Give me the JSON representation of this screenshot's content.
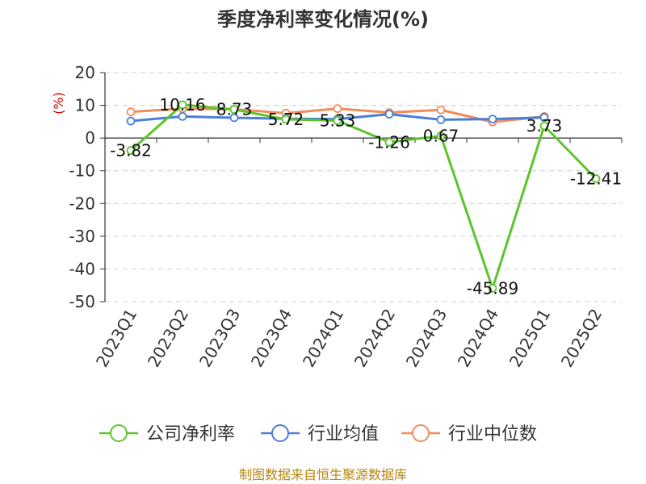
{
  "chart_data": {
    "type": "line",
    "title": "季度净利率变化情况(%)",
    "ylabel": "(%)",
    "xlabel": "",
    "categories": [
      "2023Q1",
      "2023Q2",
      "2023Q3",
      "2023Q4",
      "2024Q1",
      "2024Q2",
      "2024Q3",
      "2024Q4",
      "2025Q1",
      "2025Q2"
    ],
    "ylim": [
      -50,
      20
    ],
    "yticks": [
      20,
      10,
      0,
      -10,
      -20,
      -30,
      -40,
      -50
    ],
    "grid": true,
    "legend_position": "bottom",
    "series": [
      {
        "name": "公司净利率",
        "color": "#5cc42b",
        "values": [
          -3.82,
          10.16,
          8.73,
          5.72,
          5.33,
          -1.26,
          0.67,
          -45.89,
          3.73,
          -12.41
        ],
        "labels": [
          "-3.82",
          "10.16",
          "8.73",
          "5.72",
          "5.33",
          "-1.26",
          "0.67",
          "-45.89",
          "3.73",
          "-12.41"
        ]
      },
      {
        "name": "行业均值",
        "color": "#4a7fd6",
        "values": [
          5.2,
          6.6,
          6.2,
          5.9,
          5.8,
          7.3,
          5.6,
          5.8,
          6.3,
          null
        ]
      },
      {
        "name": "行业中位数",
        "color": "#f28c5b",
        "values": [
          8.0,
          9.0,
          8.8,
          7.6,
          9.0,
          7.8,
          8.6,
          4.9,
          6.6,
          null
        ]
      }
    ]
  },
  "source": "制图数据来自恒生聚源数据库"
}
